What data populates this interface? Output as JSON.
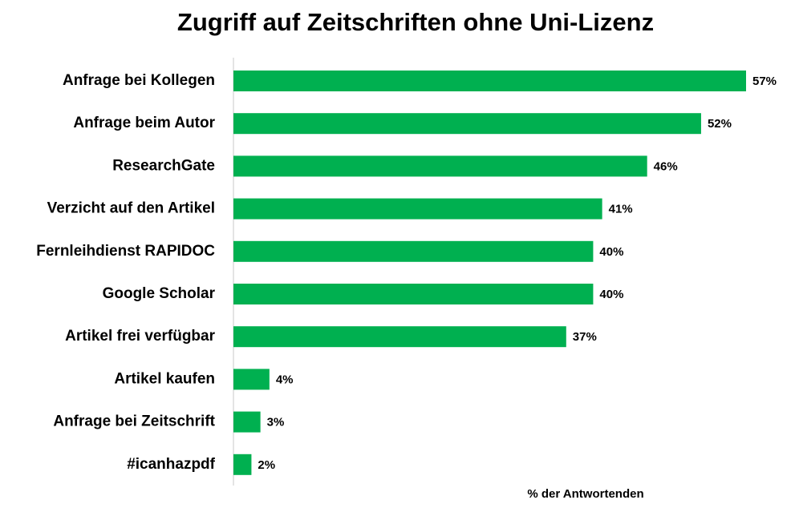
{
  "chart_data": {
    "type": "bar",
    "orientation": "horizontal",
    "title": "Zugriff auf Zeitschriften ohne Uni-Lizenz",
    "x_label": "% der Antwortenden",
    "categories": [
      "Anfrage bei Kollegen",
      "Anfrage beim Autor",
      "ResearchGate",
      "Verzicht auf den Artikel",
      "Fernleihdienst RAPIDOC",
      "Google Scholar",
      "Artikel frei verfügbar",
      "Artikel kaufen",
      "Anfrage bei Zeitschrift",
      "#icanhazpdf"
    ],
    "values": [
      57,
      52,
      46,
      41,
      40,
      40,
      37,
      4,
      3,
      2
    ],
    "value_labels": [
      "57%",
      "52%",
      "46%",
      "41%",
      "40%",
      "40%",
      "37%",
      "4%",
      "3%",
      "2%"
    ],
    "color": "#00b050"
  }
}
